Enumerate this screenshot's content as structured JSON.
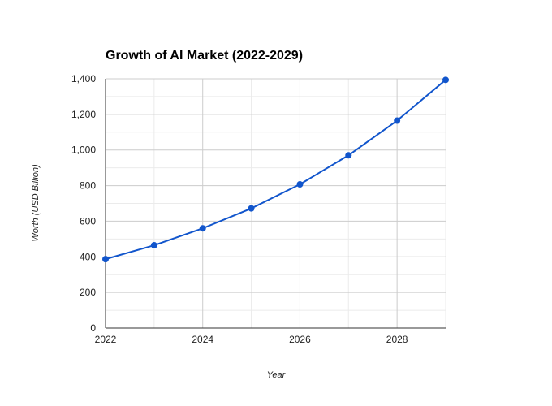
{
  "chart_data": {
    "type": "line",
    "title": "Growth of AI Market (2022-2029)",
    "xlabel": "Year",
    "ylabel": "Worth (USD Billion)",
    "x": [
      2022,
      2023,
      2024,
      2025,
      2026,
      2027,
      2028,
      2029
    ],
    "series": [
      {
        "name": "Worth (USD Billion)",
        "values": [
          387,
          465,
          560,
          672,
          807,
          970,
          1165,
          1394
        ]
      }
    ],
    "xlim": [
      2022,
      2029
    ],
    "ylim": [
      0,
      1400
    ],
    "x_ticks": [
      2022,
      2024,
      2026,
      2028
    ],
    "x_tick_labels": [
      "2022",
      "2024",
      "2026",
      "2028"
    ],
    "y_ticks": [
      0,
      200,
      400,
      600,
      800,
      1000,
      1200,
      1400
    ],
    "y_tick_labels": [
      "0",
      "200",
      "400",
      "600",
      "800",
      "1,000",
      "1,200",
      "1,400"
    ],
    "grid": true,
    "legend": "none",
    "line_color": "#1155cc",
    "marker_color": "#1155cc"
  }
}
